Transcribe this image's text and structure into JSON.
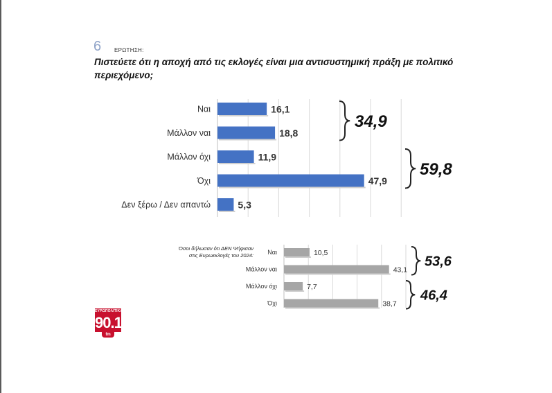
{
  "question": {
    "number": "6",
    "label": "ΕΡΩΤΗΣΗ:",
    "title": "Πιστεύετε ότι η αποχή από τις εκλογές είναι μια αντισυστημική πράξη με πολιτικό περιεχόμενο;"
  },
  "subgroup_label": {
    "line1": "Όσοι δήλωσαν ότι ΔΕΝ Ψήφισαν",
    "line2": "στις Ευρωεκλογές του 2024:"
  },
  "logo": {
    "top": "ΕΥΡΩΠΟΛΙΤΙΚΑ",
    "number": "90.1",
    "suffix": "fm"
  },
  "colors": {
    "main_bar": "#4472c4",
    "sub_bar": "#a6a6a6",
    "grid": "#d9d9d9"
  },
  "chart_data": [
    {
      "type": "bar",
      "orientation": "horizontal",
      "categories": [
        "Ναι",
        "Μάλλον ναι",
        "Μάλλον όχι",
        "Όχι",
        "Δεν ξέρω / Δεν απαντώ"
      ],
      "values": [
        16.1,
        18.8,
        11.9,
        47.9,
        5.3
      ],
      "value_labels": [
        "16,1",
        "18,8",
        "11,9",
        "47,9",
        "5,3"
      ],
      "xlim": [
        0,
        60
      ],
      "grid": true,
      "groups": [
        {
          "label": "34,9",
          "value": 34.9,
          "categories": [
            0,
            1
          ]
        },
        {
          "label": "59,8",
          "value": 59.8,
          "categories": [
            2,
            3
          ]
        }
      ]
    },
    {
      "type": "bar",
      "orientation": "horizontal",
      "categories": [
        "Ναι",
        "Μάλλον ναι",
        "Μάλλον όχι",
        "Όχι"
      ],
      "values": [
        10.5,
        43.1,
        7.7,
        38.7
      ],
      "value_labels": [
        "10,5",
        "43,1",
        "7,7",
        "38,7"
      ],
      "xlim": [
        0,
        50
      ],
      "grid": true,
      "groups": [
        {
          "label": "53,6",
          "value": 53.6,
          "categories": [
            0,
            1
          ]
        },
        {
          "label": "46,4",
          "value": 46.4,
          "categories": [
            2,
            3
          ]
        }
      ]
    }
  ]
}
